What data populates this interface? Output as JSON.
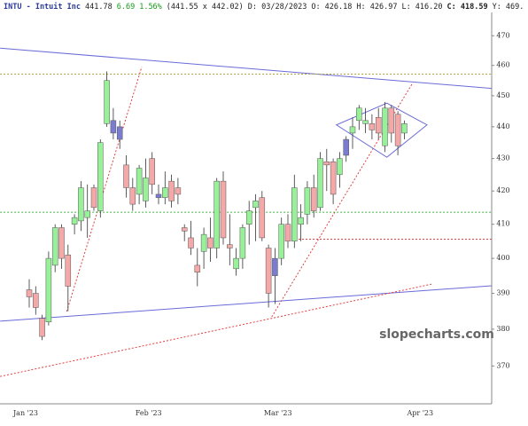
{
  "chart_data": {
    "type": "candlestick",
    "header": [
      {
        "text": "INTU - Intuit Inc",
        "color": "#2b3a9a",
        "bold": true
      },
      {
        "text": "441.78",
        "color": "#222222",
        "bold": false
      },
      {
        "text": "6.69",
        "color": "#1a9a1a",
        "bold": false
      },
      {
        "text": "1.56%",
        "color": "#1a9a1a",
        "bold": false
      },
      {
        "text": "(441.55 x 442.02)",
        "color": "#222222",
        "bold": false
      },
      {
        "text": "D: 03/28/2023",
        "color": "#222222",
        "bold": false
      },
      {
        "text": "O: 426.18",
        "color": "#222222",
        "bold": false
      },
      {
        "text": "H: 426.97",
        "color": "#222222",
        "bold": false
      },
      {
        "text": "L: 416.20",
        "color": "#222222",
        "bold": false
      },
      {
        "text": "C: 418.59",
        "color": "#222222",
        "bold": true
      },
      {
        "text": "Y: 469.",
        "color": "#222222",
        "bold": false
      }
    ],
    "watermark": "slopecharts.com",
    "log_scale": true,
    "ylim": [
      360,
      478
    ],
    "yticks": [
      370,
      380,
      390,
      400,
      410,
      420,
      430,
      440,
      450,
      460,
      470
    ],
    "categories": [
      "Jan '23",
      null,
      null,
      null,
      null,
      null,
      null,
      null,
      null,
      null,
      null,
      null,
      null,
      null,
      null,
      null,
      null,
      null,
      null,
      "Feb '23",
      null,
      null,
      null,
      null,
      null,
      null,
      null,
      null,
      null,
      null,
      null,
      null,
      null,
      null,
      null,
      null,
      null,
      null,
      null,
      "Mar '23",
      null,
      null,
      null,
      null,
      null,
      null,
      null,
      null,
      null,
      null,
      null,
      null,
      null,
      null,
      null,
      null,
      null,
      null,
      null,
      null,
      null,
      "Apr '23",
      null,
      null,
      null,
      null,
      null,
      null,
      null,
      null,
      null,
      null
    ],
    "ohlc": [
      [
        391,
        394,
        386,
        389
      ],
      [
        390,
        392,
        384,
        386
      ],
      [
        383,
        384,
        377,
        378
      ],
      [
        382,
        402,
        381,
        400
      ],
      [
        398,
        410,
        396,
        409
      ],
      [
        409,
        410,
        397,
        400
      ],
      [
        401,
        404,
        385,
        392
      ],
      [
        410,
        413,
        407,
        412
      ],
      [
        411,
        423,
        408,
        421
      ],
      [
        412,
        422,
        406,
        414
      ],
      [
        421,
        422,
        414,
        415
      ],
      [
        414,
        436,
        412,
        435
      ],
      [
        441,
        458,
        440,
        455
      ],
      [
        442,
        446,
        436,
        438
      ],
      [
        440,
        442,
        433,
        436
      ],
      [
        428,
        431,
        418,
        421
      ],
      [
        421,
        424,
        414,
        416
      ],
      [
        419,
        428,
        416,
        427
      ],
      [
        417,
        430,
        415,
        424
      ],
      [
        430,
        432,
        419,
        422
      ],
      [
        419,
        422,
        416,
        418
      ],
      [
        418,
        426,
        416,
        421
      ],
      [
        423,
        425,
        415,
        417
      ],
      [
        421,
        424,
        416,
        419
      ],
      [
        409,
        410,
        405,
        408
      ],
      [
        406,
        411,
        401,
        403
      ],
      [
        398,
        403,
        392,
        396
      ],
      [
        402,
        409,
        397,
        407
      ],
      [
        406,
        412,
        399,
        403
      ],
      [
        403,
        424,
        400,
        423
      ],
      [
        423,
        426,
        404,
        406
      ],
      [
        404,
        413,
        398,
        403
      ],
      [
        397,
        403,
        395,
        400
      ],
      [
        400,
        410,
        397,
        409
      ],
      [
        410,
        417,
        404,
        414
      ],
      [
        415,
        419,
        405,
        417
      ],
      [
        418,
        420,
        405,
        406
      ],
      [
        403,
        404,
        386,
        390
      ],
      [
        395,
        403,
        387,
        400
      ],
      [
        400,
        412,
        398,
        410
      ],
      [
        410,
        413,
        403,
        405
      ],
      [
        405,
        425,
        403,
        421
      ],
      [
        410,
        416,
        405,
        412
      ],
      [
        413,
        423,
        410,
        421
      ],
      [
        421,
        425,
        412,
        414
      ],
      [
        415,
        432,
        414,
        430
      ],
      [
        429,
        433,
        420,
        428
      ],
      [
        429,
        430,
        416,
        419
      ],
      [
        425,
        432,
        421,
        430
      ],
      [
        431,
        437,
        429,
        436
      ],
      [
        438,
        443,
        433,
        440
      ],
      [
        442,
        447,
        439,
        446
      ],
      [
        442,
        446,
        438,
        441
      ],
      [
        441,
        444,
        436,
        439
      ],
      [
        443,
        446,
        436,
        438
      ],
      [
        434,
        448,
        432,
        446
      ],
      [
        446,
        447,
        435,
        438
      ],
      [
        444,
        445,
        431,
        434
      ],
      [
        438,
        442,
        436,
        441
      ],
      null,
      null,
      null,
      null,
      null,
      null,
      null,
      null,
      null,
      null,
      null,
      null,
      null
    ],
    "colors": [
      "#f4a8a8",
      "#f4a8a8",
      "#f4a8a8",
      "#98f098",
      "#98f098",
      "#f4a8a8",
      "#f4a8a8",
      "#98f098",
      "#98f098",
      "#98f098",
      "#f4a8a8",
      "#98f098",
      "#98f098",
      "#7b7bd0",
      "#7b7bd0",
      "#f4a8a8",
      "#f4a8a8",
      "#98f098",
      "#98f098",
      "#f4a8a8",
      "#7b7bd0",
      "#98f098",
      "#f4a8a8",
      "#f4a8a8",
      "#f4a8a8",
      "#f4a8a8",
      "#f4a8a8",
      "#98f098",
      "#f4a8a8",
      "#98f098",
      "#f4a8a8",
      "#f4a8a8",
      "#98f098",
      "#98f098",
      "#98f098",
      "#98f098",
      "#f4a8a8",
      "#f4a8a8",
      "#7b7bd0",
      "#98f098",
      "#f4a8a8",
      "#98f098",
      "#98f098",
      "#98f098",
      "#f4a8a8",
      "#98f098",
      "#f4a8a8",
      "#f4a8a8",
      "#98f098",
      "#7b7bd0",
      "#98f098",
      "#98f098",
      "#98f098",
      "#f4a8a8",
      "#f4a8a8",
      "#98f098",
      "#f4a8a8",
      "#f4a8a8",
      "#98f098",
      null,
      null,
      null,
      null,
      null,
      null,
      null,
      null,
      null,
      null,
      null,
      null,
      null
    ],
    "overlays": [
      {
        "color": "#6a6ad8",
        "dashed": false,
        "closed": false,
        "points": [
          [
            -4.5,
            465.8
          ],
          [
            74.9,
            451.8
          ]
        ]
      },
      {
        "color": "#6a6ad8",
        "dashed": false,
        "closed": false,
        "points": [
          [
            -4.5,
            382.2
          ],
          [
            74.9,
            392.6
          ]
        ]
      },
      {
        "color": "#e04040",
        "dashed": true,
        "closed": false,
        "points": [
          [
            -4.5,
            367.2
          ],
          [
            62.2,
            392.6
          ]
        ]
      },
      {
        "color": "#e04040",
        "dashed": true,
        "closed": false,
        "points": [
          [
            5.8,
            384.9
          ],
          [
            17.4,
            459.5
          ]
        ]
      },
      {
        "color": "#e04040",
        "dashed": true,
        "closed": false,
        "points": [
          [
            37.5,
            383.4
          ],
          [
            59.2,
            453.9
          ]
        ]
      },
      {
        "color": "#40b040",
        "dashed": true,
        "closed": false,
        "points": [
          [
            -4.5,
            413.6
          ],
          [
            71.5,
            413.6
          ]
        ]
      },
      {
        "color": "#e04040",
        "dashed": true,
        "closed": false,
        "points": [
          [
            40,
            405.6
          ],
          [
            71.5,
            405.6
          ]
        ]
      },
      {
        "color": "#b0a040",
        "dashed": true,
        "closed": false,
        "points": [
          [
            -4.5,
            457.1
          ],
          [
            71.5,
            457.1
          ]
        ]
      },
      {
        "color": "#6a6ad8",
        "dashed": false,
        "closed": true,
        "points": [
          [
            47.5,
            440.6
          ],
          [
            55.3,
            447.6
          ],
          [
            61.5,
            440.6
          ],
          [
            55.3,
            430.4
          ]
        ]
      }
    ]
  }
}
